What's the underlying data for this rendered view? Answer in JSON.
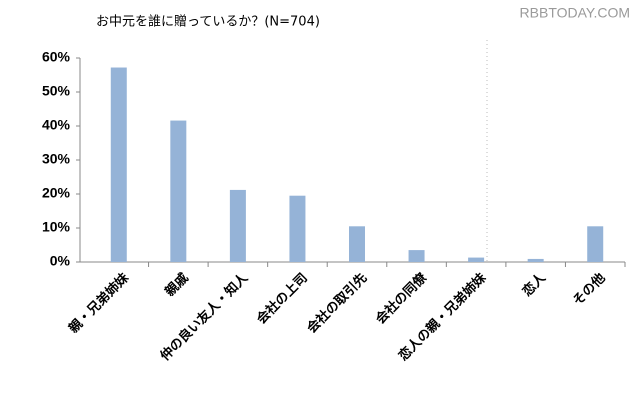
{
  "chart_data": {
    "type": "bar",
    "title": "お中元を誰に贈っているか？(N=704)",
    "watermark": "RBBTODAY.COM",
    "categories": [
      "親・兄弟姉妹",
      "親戚",
      "仲の良い友人・知人",
      "会社の上司",
      "会社の取引先",
      "会社の同僚",
      "恋人の親・兄弟姉妹",
      "恋人",
      "その他"
    ],
    "values": [
      57.2,
      41.6,
      21.2,
      19.5,
      10.5,
      3.5,
      1.3,
      0.9,
      10.5
    ],
    "color": "#95b3d7",
    "ylim": [
      0,
      60
    ],
    "yticks": [
      {
        "value": 0,
        "label": "0%"
      },
      {
        "value": 10,
        "label": "10%"
      },
      {
        "value": 20,
        "label": "20%"
      },
      {
        "value": 30,
        "label": "30%"
      },
      {
        "value": 40,
        "label": "40%"
      },
      {
        "value": 50,
        "label": "50%"
      },
      {
        "value": 60,
        "label": "60%"
      }
    ],
    "grid": false
  }
}
